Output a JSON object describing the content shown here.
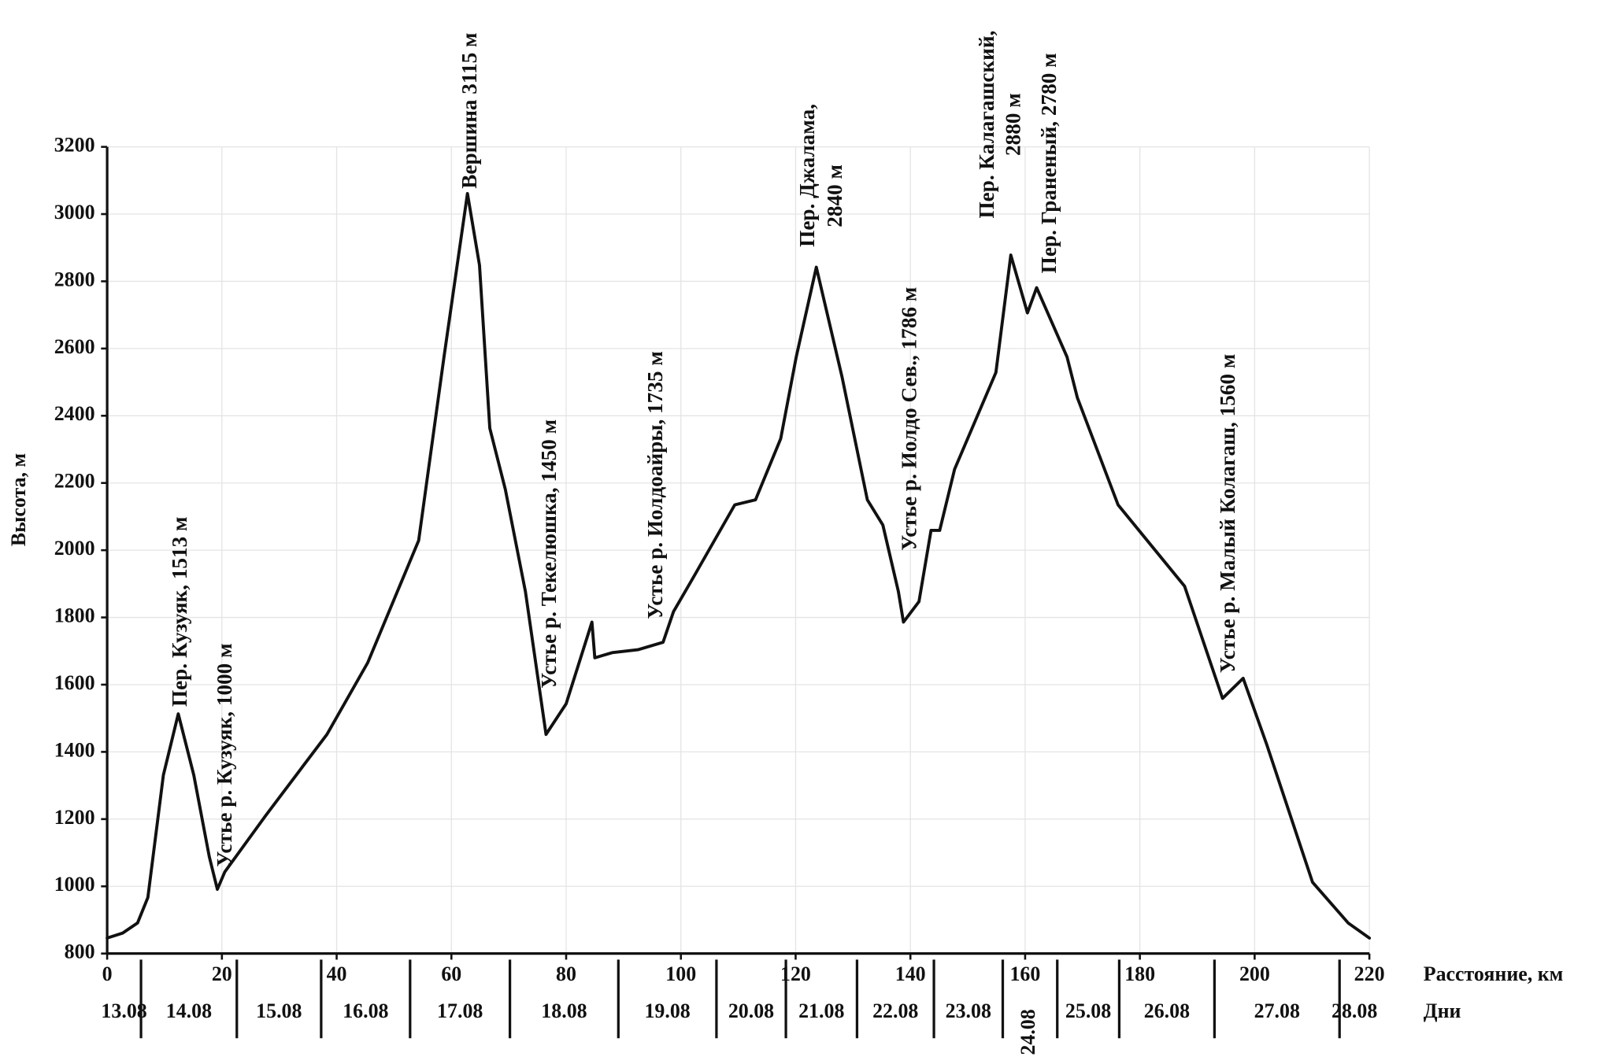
{
  "chart_data": {
    "type": "line",
    "x": [
      0,
      2.7,
      5.3,
      7.1,
      9.8,
      12.4,
      15.1,
      17.8,
      19.2,
      20.5,
      27.6,
      38.3,
      45.4,
      54.3,
      58.7,
      62.8,
      64.9,
      66.7,
      69.4,
      72.9,
      76.5,
      80.0,
      84.5,
      85.0,
      88.0,
      92.5,
      96.9,
      98.7,
      102.3,
      109.4,
      113.0,
      117.4,
      120.1,
      123.6,
      128.1,
      132.5,
      135.2,
      137.9,
      138.8,
      141.5,
      143.6,
      145.1,
      147.7,
      154.9,
      157.5,
      160.4,
      162.0,
      167.3,
      169.1,
      176.2,
      187.8,
      194.4,
      198.0,
      202.1,
      210.1,
      216.3,
      220
    ],
    "values": [
      846,
      861,
      891,
      967,
      1331,
      1513,
      1331,
      1088,
      991,
      1043,
      1210,
      1452,
      1665,
      2029,
      2575,
      3061,
      2848,
      2363,
      2181,
      1877,
      1452,
      1543,
      1786,
      1680,
      1695,
      1704,
      1726,
      1817,
      1923,
      2135,
      2150,
      2332,
      2575,
      2842,
      2514,
      2150,
      2075,
      1877,
      1786,
      1847,
      2059,
      2059,
      2241,
      2529,
      2878,
      2706,
      2781,
      2575,
      2454,
      2135,
      1893,
      1559,
      1619,
      1422,
      1012,
      891,
      846
    ],
    "color": "#111111",
    "xlim": [
      0,
      220
    ],
    "xticks": [
      0,
      20,
      40,
      60,
      80,
      100,
      120,
      140,
      160,
      180,
      200,
      220
    ],
    "ylim": [
      800,
      3200
    ],
    "yticks": [
      800,
      1000,
      1200,
      1400,
      1600,
      1800,
      2000,
      2200,
      2400,
      2600,
      2800,
      3000,
      3200
    ],
    "grid": true,
    "xlabel": "Расстояние, км",
    "ylabel": "Высота, м",
    "days_label": "Дни",
    "day_boundaries": [
      5.9,
      22.6,
      37.3,
      52.8,
      70.2,
      89.1,
      106.2,
      118.3,
      130.7,
      144.1,
      156.1,
      165.6,
      176.4,
      193.0,
      214.8
    ],
    "days": [
      "13.08",
      "14.08",
      "15.08",
      "16.08",
      "17.08",
      "18.08",
      "19.08",
      "20.08",
      "21.08",
      "22.08",
      "23.08",
      "24.08",
      "25.08",
      "26.08",
      "27.08",
      "28.08"
    ],
    "annotations": [
      [
        "Пер. Кузуяк, 1513 м"
      ],
      [
        "Устье р. Кузуяк, 1000 м"
      ],
      [
        "Вершина 3115 м"
      ],
      [
        "Устье р. Текелюшка, 1450 м"
      ],
      [
        "Устье р. Иолдоайры, 1735 м"
      ],
      [
        "Пер. Джалама,",
        "2840 м"
      ],
      [
        "Устье р. Иолдо Сев., 1786 м"
      ],
      [
        "Пер. Калагашский,",
        "2880 м"
      ],
      [
        "Пер. Граненый, 2780 м"
      ],
      [
        "Устье р. Малый Колагаш, 1560 м"
      ]
    ]
  }
}
